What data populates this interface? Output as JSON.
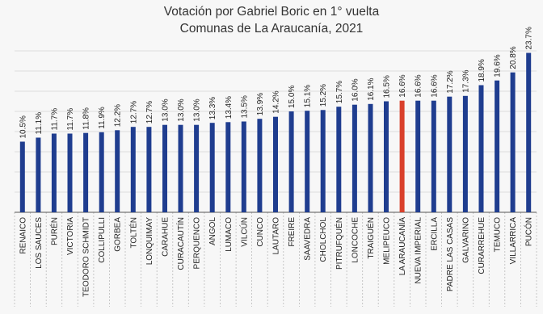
{
  "colors": {
    "bar": "#1f3d8f",
    "highlight": "#d9402b",
    "grid": "#dcdcdc",
    "axis": "#555555"
  },
  "chart_data": {
    "type": "bar",
    "title": "Votación por Gabriel Boric en 1° vuelta",
    "subtitle": "Comunas de La Araucanía, 2021",
    "xlabel": "",
    "ylabel": "",
    "ylim": [
      0,
      24
    ],
    "grid": true,
    "highlight": "LA ARAUCANÍA",
    "categories": [
      "RENAICO",
      "LOS SAUCES",
      "PURÉN",
      "VICTORIA",
      "TEODORO SCHMIDT",
      "COLLIPULLI",
      "GORBEA",
      "TOLTÉN",
      "LONQUIMAY",
      "CARAHUE",
      "CURACAUTÍN",
      "PERQUENCO",
      "ANGOL",
      "LUMACO",
      "VILCÚN",
      "CUNCO",
      "LAUTARO",
      "FREIRE",
      "SAAVEDRA",
      "CHOLCHOL",
      "PITRUFQUÉN",
      "LONCOCHE",
      "TRAIGUÉN",
      "MELIPEUCO",
      "LA ARAUCANÍA",
      "NUEVA IMPERIAL",
      "ERCILLA",
      "PADRE LAS CASAS",
      "GALVARINO",
      "CURARREHUE",
      "TEMUCO",
      "VILLARRICA",
      "PUCÓN"
    ],
    "values": [
      10.5,
      11.1,
      11.7,
      11.7,
      11.8,
      11.9,
      12.2,
      12.7,
      12.7,
      13.0,
      13.0,
      13.0,
      13.3,
      13.4,
      13.5,
      13.9,
      14.2,
      15.0,
      15.1,
      15.2,
      15.7,
      16.0,
      16.1,
      16.5,
      16.6,
      16.6,
      16.6,
      17.2,
      17.3,
      18.9,
      19.6,
      20.8,
      23.7
    ],
    "data_labels": [
      "10.5%",
      "11.1%",
      "11.7%",
      "11.7%",
      "11.8%",
      "11.9%",
      "12.2%",
      "12.7%",
      "12.7%",
      "13.0%",
      "13.0%",
      "13.0%",
      "13.3%",
      "13.4%",
      "13.5%",
      "13.9%",
      "14.2%",
      "15.0%",
      "15.1%",
      "15.2%",
      "15.7%",
      "16.0%",
      "16.1%",
      "16.5%",
      "16.6%",
      "16.6%",
      "16.6%",
      "17.2%",
      "17.3%",
      "18.9%",
      "19.6%",
      "20.8%",
      "23.7%"
    ]
  }
}
